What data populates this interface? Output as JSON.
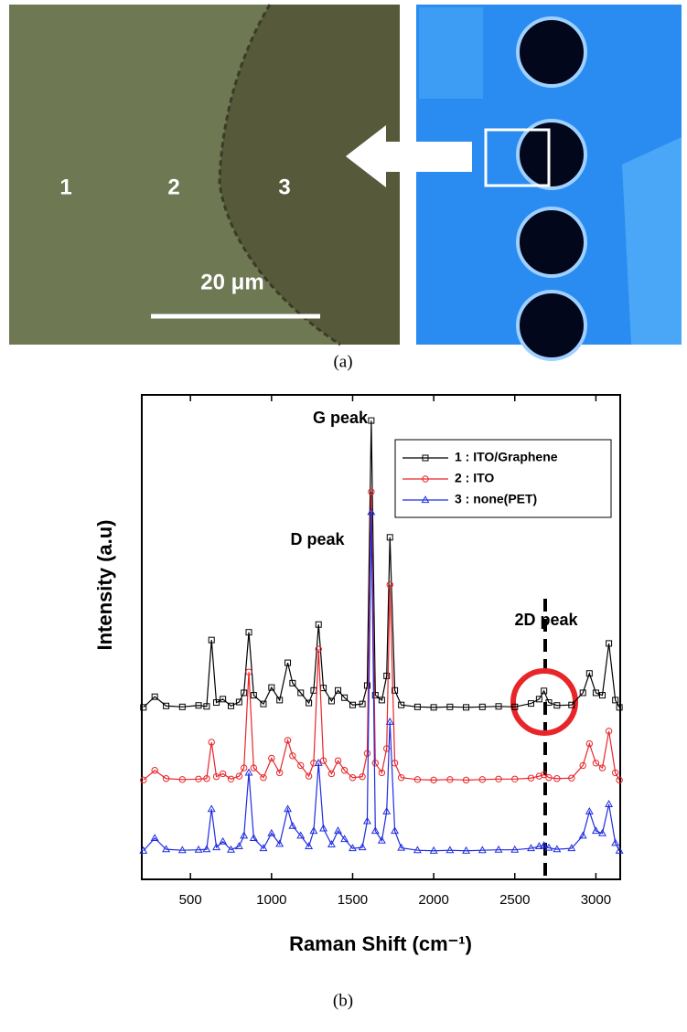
{
  "panel_a": {
    "region_labels": [
      "1",
      "2",
      "3"
    ],
    "scale_bar": "20 μm",
    "caption": "(a)"
  },
  "chart_data": {
    "type": "line",
    "xlabel": "Raman Shift (cm⁻¹)",
    "ylabel": "Intensity (a.u)",
    "x": [
      210,
      280,
      350,
      450,
      550,
      600,
      630,
      660,
      700,
      750,
      800,
      830,
      860,
      890,
      950,
      1000,
      1050,
      1100,
      1130,
      1180,
      1230,
      1260,
      1290,
      1320,
      1370,
      1410,
      1450,
      1500,
      1560,
      1590,
      1615,
      1640,
      1680,
      1710,
      1730,
      1760,
      1800,
      1900,
      2000,
      2100,
      2200,
      2300,
      2400,
      2500,
      2600,
      2650,
      2680,
      2710,
      2760,
      2850,
      2920,
      2960,
      3000,
      3040,
      3080,
      3120,
      3145
    ],
    "xlim": [
      200,
      3150
    ],
    "xticks": [
      500,
      1000,
      1500,
      2000,
      2500,
      3000
    ],
    "ylim": [
      0,
      100
    ],
    "legend": "upper right",
    "annotations": [
      "G peak",
      "D peak",
      "2D peak"
    ],
    "series": [
      {
        "name": "1 : ITO/Graphene",
        "color": "#000000",
        "marker": "square",
        "values": [
          35.5,
          37.7,
          35.8,
          35.6,
          35.9,
          35.7,
          49.4,
          36.5,
          37.2,
          35.8,
          36.6,
          38.5,
          51,
          38,
          36.2,
          39.6,
          37,
          44.7,
          40.5,
          38.5,
          36.4,
          39,
          52.6,
          39.5,
          36.8,
          39,
          37.5,
          36,
          36.2,
          40,
          94.7,
          38,
          37,
          42,
          70.6,
          39,
          36,
          35.6,
          35.5,
          35.6,
          35.5,
          35.6,
          35.7,
          35.6,
          36.3,
          37.2,
          38.9,
          36.5,
          35.9,
          36,
          38.5,
          42.5,
          38.5,
          38,
          48.7,
          37,
          35.5
        ]
      },
      {
        "name": "2 : ITO",
        "color": "#e8262a",
        "marker": "circle",
        "values": [
          20.5,
          22.5,
          20.8,
          20.6,
          20.7,
          20.8,
          28.3,
          21.2,
          21.8,
          20.7,
          21.3,
          23,
          42.8,
          23,
          21,
          25,
          22,
          28.7,
          25.5,
          23.5,
          21.3,
          24,
          47.5,
          24.5,
          21.8,
          24.5,
          22.5,
          21,
          21.2,
          26,
          80,
          24,
          22,
          27,
          60.8,
          24,
          21,
          20.6,
          20.5,
          20.6,
          20.5,
          20.6,
          20.7,
          20.7,
          20.9,
          21.3,
          21.6,
          21,
          20.8,
          20.9,
          23.5,
          28,
          24,
          23,
          30.6,
          22,
          20.5
        ]
      },
      {
        "name": "3 : none(PET)",
        "color": "#1f2de0",
        "marker": "triangle",
        "values": [
          5.9,
          8.5,
          6.2,
          6,
          6.1,
          6.2,
          14.5,
          6.6,
          7.8,
          6.1,
          6.8,
          9,
          22,
          8.5,
          6.4,
          9.5,
          7.3,
          14.5,
          11,
          9,
          6.8,
          10,
          24,
          10.5,
          7.2,
          10,
          8.3,
          6.4,
          6.6,
          12,
          75.8,
          10,
          8,
          14,
          32.5,
          10,
          6.5,
          6,
          5.9,
          6,
          5.9,
          6,
          6.1,
          6.1,
          6.4,
          6.8,
          7,
          6.5,
          6.2,
          6.4,
          9,
          14,
          10,
          9.5,
          15.5,
          7.5,
          5.9
        ]
      }
    ],
    "caption": "(b)"
  }
}
